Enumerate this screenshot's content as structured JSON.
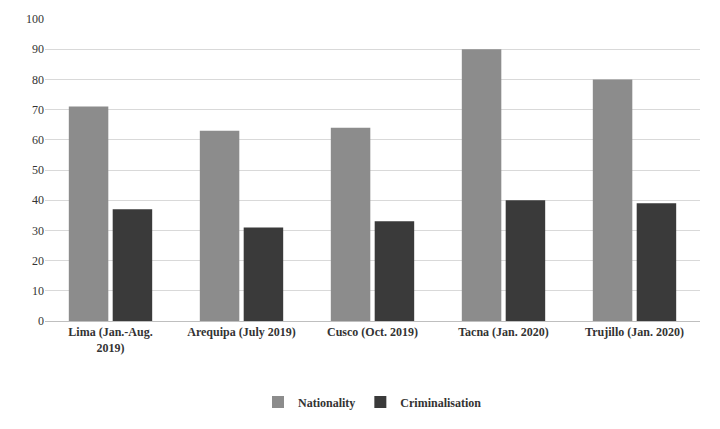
{
  "chart_data": {
    "type": "bar",
    "categories": [
      "Lima (Jan.-Aug. 2019)",
      "Arequipa (July 2019)",
      "Cusco (Oct. 2019)",
      "Tacna (Jan. 2020)",
      "Trujillo (Jan. 2020)"
    ],
    "series": [
      {
        "name": "Nationality",
        "color": "#8c8c8c",
        "values": [
          71,
          63,
          64,
          90,
          80
        ]
      },
      {
        "name": "Criminalisation",
        "color": "#3a3a3a",
        "values": [
          37,
          31,
          33,
          40,
          39
        ]
      }
    ],
    "ylim": [
      0,
      100
    ],
    "yticks": [
      0,
      10,
      20,
      30,
      40,
      50,
      60,
      70,
      80,
      90,
      100
    ],
    "grid": true,
    "legend": "bottom"
  }
}
